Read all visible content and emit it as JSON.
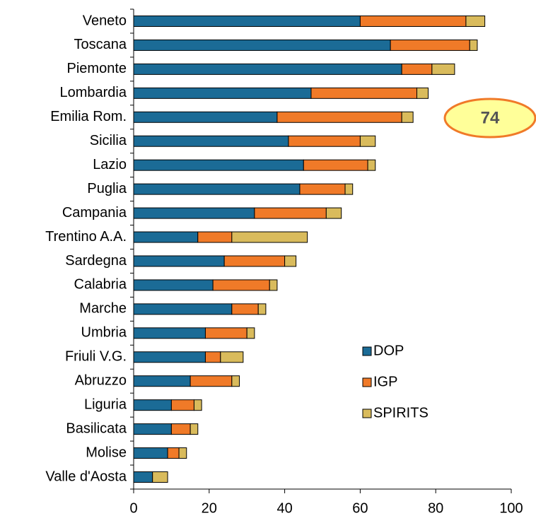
{
  "chart_data": {
    "type": "bar",
    "orientation": "horizontal",
    "stacked": true,
    "categories": [
      "Veneto",
      "Toscana",
      "Piemonte",
      "Lombardia",
      "Emilia Rom.",
      "Sicilia",
      "Lazio",
      "Puglia",
      "Campania",
      "Trentino A.A.",
      "Sardegna",
      "Calabria",
      "Marche",
      "Umbria",
      "Friuli V.G.",
      "Abruzzo",
      "Liguria",
      "Basilicata",
      "Molise",
      "Valle d'Aosta"
    ],
    "series": [
      {
        "name": "DOP",
        "color": "#1b6b96",
        "values": [
          60,
          68,
          71,
          47,
          38,
          41,
          45,
          44,
          32,
          17,
          24,
          21,
          26,
          19,
          19,
          15,
          10,
          10,
          9,
          5
        ]
      },
      {
        "name": "IGP",
        "color": "#f07a28",
        "values": [
          28,
          21,
          8,
          28,
          33,
          19,
          17,
          12,
          19,
          9,
          16,
          15,
          7,
          11,
          4,
          11,
          6,
          5,
          3,
          0
        ]
      },
      {
        "name": "SPIRITS",
        "color": "#d9bb5c",
        "values": [
          5,
          2,
          6,
          3,
          3,
          4,
          2,
          2,
          4,
          20,
          3,
          2,
          2,
          2,
          6,
          2,
          2,
          2,
          2,
          4
        ]
      }
    ],
    "xlim": [
      0,
      100
    ],
    "xticks": [
      0,
      20,
      40,
      60,
      80,
      100
    ],
    "annotation": "74",
    "legend": "lower right"
  }
}
